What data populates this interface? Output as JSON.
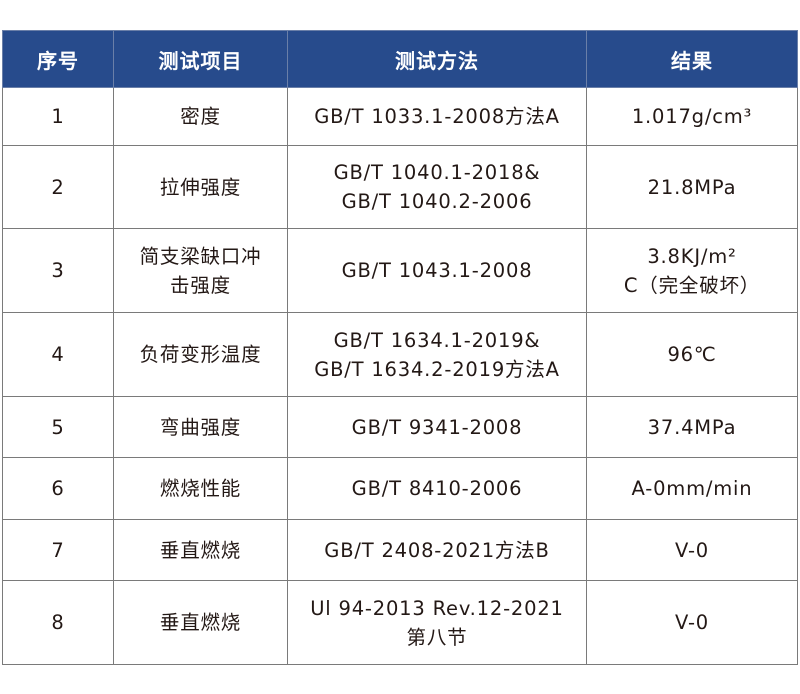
{
  "table": {
    "header_color": "#274b8c",
    "headers": [
      "序号",
      "测试项目",
      "测试方法",
      "结果"
    ],
    "rows": [
      {
        "no": "1",
        "item": [
          "密度"
        ],
        "method": [
          "GB/T 1033.1-2008方法A"
        ],
        "result": [
          "1.017g/cm³"
        ]
      },
      {
        "no": "2",
        "item": [
          "拉伸强度"
        ],
        "method": [
          "GB/T 1040.1-2018&",
          "GB/T 1040.2-2006"
        ],
        "result": [
          "21.8MPa"
        ]
      },
      {
        "no": "3",
        "item": [
          "简支梁缺口冲",
          "击强度"
        ],
        "method": [
          "GB/T 1043.1-2008"
        ],
        "result": [
          "3.8KJ/m²",
          "C（完全破坏）"
        ]
      },
      {
        "no": "4",
        "item": [
          "负荷变形温度"
        ],
        "method": [
          "GB/T 1634.1-2019&",
          "GB/T 1634.2-2019方法A"
        ],
        "result": [
          "96℃"
        ]
      },
      {
        "no": "5",
        "item": [
          "弯曲强度"
        ],
        "method": [
          "GB/T 9341-2008"
        ],
        "result": [
          "37.4MPa"
        ]
      },
      {
        "no": "6",
        "item": [
          "燃烧性能"
        ],
        "method": [
          "GB/T 8410-2006"
        ],
        "result": [
          "A-0mm/min"
        ]
      },
      {
        "no": "7",
        "item": [
          "垂直燃烧"
        ],
        "method": [
          "GB/T 2408-2021方法B"
        ],
        "result": [
          "V-0"
        ]
      },
      {
        "no": "8",
        "item": [
          "垂直燃烧"
        ],
        "method": [
          "Ul 94-2013 Rev.12-2021",
          "第八节"
        ],
        "result": [
          "V-0"
        ]
      }
    ]
  }
}
